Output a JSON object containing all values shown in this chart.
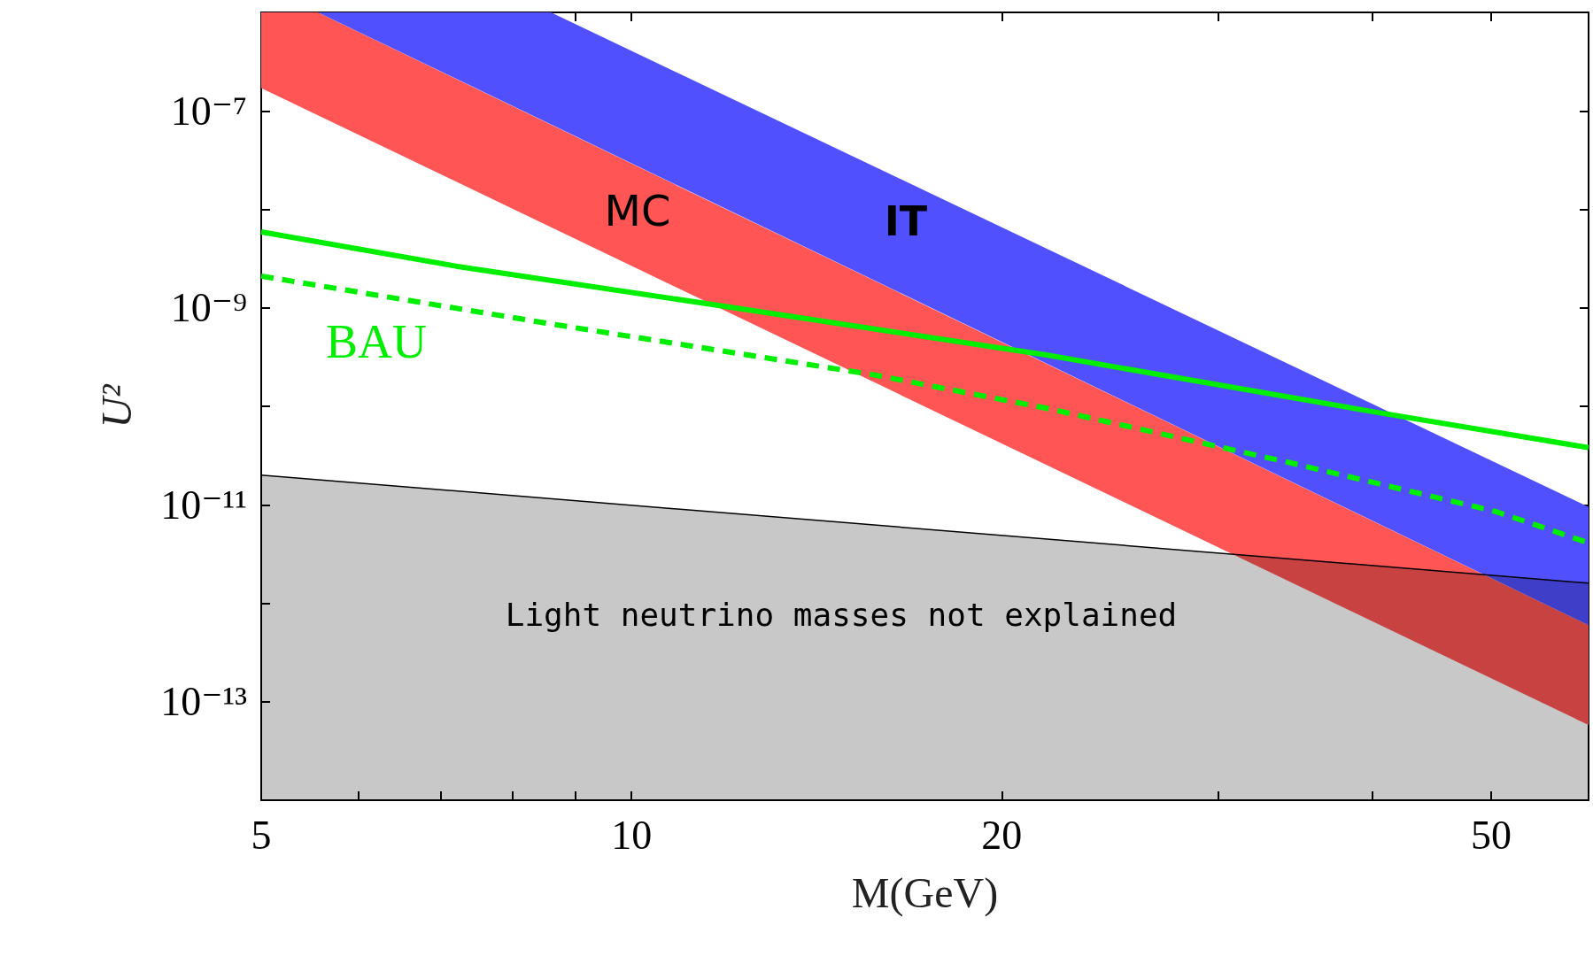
{
  "chart_data": {
    "type": "area",
    "xlabel": "M(GeV)",
    "ylabel": "U²",
    "log": "xy",
    "grid": false,
    "xlim": [
      5,
      60
    ],
    "ylim": [
      1e-14,
      1e-06
    ],
    "xticks": [
      5,
      {
        "value": 6,
        "label": null
      },
      {
        "value": 7,
        "label": null
      },
      {
        "value": 8,
        "label": null
      },
      {
        "value": 9,
        "label": null
      },
      10,
      20,
      {
        "value": 30,
        "label": null
      },
      {
        "value": 40,
        "label": null
      },
      50
    ],
    "yticks": [
      {
        "value": 1e-13,
        "label": "10⁻¹³"
      },
      {
        "value": 1e-12,
        "label": null
      },
      {
        "value": 1e-11,
        "label": "10⁻¹¹"
      },
      {
        "value": 1e-10,
        "label": null
      },
      {
        "value": 1e-09,
        "label": "10⁻⁹"
      },
      {
        "value": 1e-08,
        "label": null
      },
      {
        "value": 1e-07,
        "label": "10⁻⁷"
      }
    ],
    "series": [
      {
        "color": "#ff5555",
        "x": [
          5,
          5.56,
          60
        ],
        "values": [
          null,
          null,
          null
        ],
        "lower": [
          1.7e-07,
          9e-08,
          5.8e-14
        ],
        "upper": [
          1e-06,
          1e-06,
          6e-13
        ]
      },
      {
        "color": "#5050ff",
        "x": [
          5.56,
          8.6,
          60
        ],
        "values": [
          null,
          null,
          null
        ],
        "lower": [
          1e-06,
          7.3e-08,
          6e-13
        ],
        "upper": [
          1e-06,
          1e-06,
          9.5e-12
        ]
      },
      {
        "color": "#c8c8c8",
        "x": [
          5,
          60
        ],
        "values": [
          2e-11,
          1.6e-12
        ]
      },
      {
        "type": "line",
        "color": "#00ee00",
        "line_style": "solid",
        "x": [
          5,
          7.2,
          11.7,
          21.8,
          39.9,
          60
        ],
        "values": [
          5.9e-09,
          2.65e-09,
          1.07e-09,
          3.3e-10,
          8.9e-11,
          3.8e-11
        ]
      },
      {
        "type": "line",
        "color": "#00ee00",
        "line_style": "dashed",
        "x": [
          5,
          8.77,
          15.7,
          21.8,
          34.2,
          50.5,
          60
        ],
        "values": [
          2.1e-09,
          6.6e-10,
          2.1e-10,
          9.5e-11,
          2.7e-11,
          8.5e-12,
          4.1e-12
        ]
      }
    ],
    "annotations": [
      "MC",
      "IT",
      "BAU",
      "Light neutrino masses not explained"
    ]
  }
}
